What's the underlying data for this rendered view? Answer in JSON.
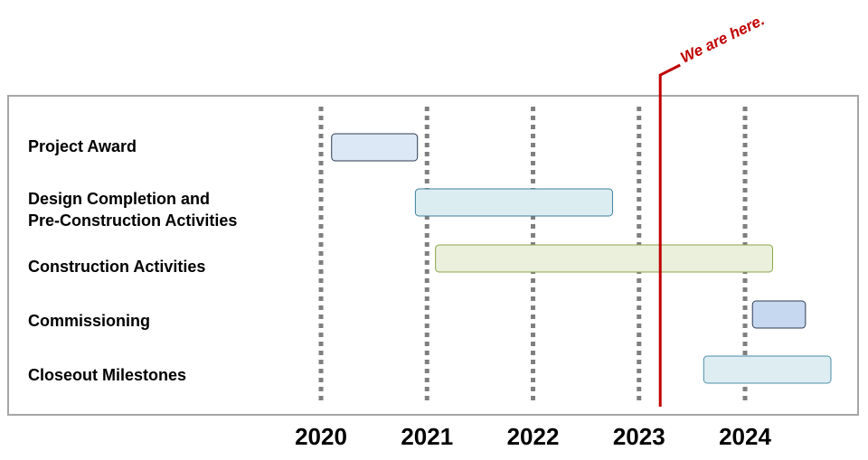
{
  "chart_data": {
    "type": "gantt",
    "categories": [
      "Project Award",
      [
        "Design Completion and",
        "Pre-Construction Activities"
      ],
      "Construction Activities",
      "Commissioning",
      "Closeout Milestones"
    ],
    "series": [
      {
        "start": [
          2020.1,
          2020.89,
          2021.08,
          2024.07,
          2023.61
        ],
        "end": [
          2020.91,
          2022.75,
          2024.26,
          2024.57,
          2024.81
        ],
        "colors": [
          "#dde8f6",
          "#dcedf2",
          "#eaf0dc",
          "#c6d7f0",
          "#ddedf2"
        ]
      }
    ],
    "xlim": [
      2019.9,
      2024.95
    ],
    "xticks": [
      2020,
      2021,
      2022,
      2023,
      2024
    ],
    "grid": true,
    "annotation": {
      "text": "We are here.",
      "value": 2023.2,
      "color": "#c00000"
    }
  }
}
